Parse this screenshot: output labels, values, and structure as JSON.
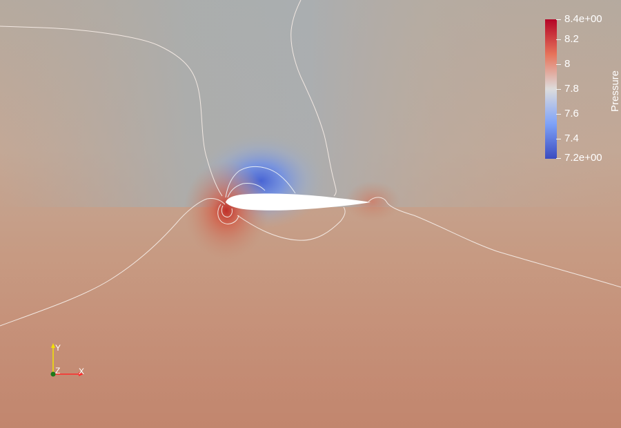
{
  "scalar_field": {
    "name": "Pressure",
    "range": [
      7.2,
      8.4
    ],
    "colormap": "cool-to-warm",
    "colors": {
      "high": "#b40426",
      "mid": "#dddcdc",
      "low": "#3b4cc0",
      "background": "#c48d74",
      "contour": "#f0e6e0",
      "airfoil": "#ffffff"
    }
  },
  "colorbar": {
    "title": "Pressure",
    "labels": [
      "8.4e+00",
      "8.2",
      "8",
      "7.8",
      "7.6",
      "7.4",
      "7.2e+00"
    ],
    "values": [
      8.4,
      8.2,
      8.0,
      7.8,
      7.6,
      7.4,
      7.2
    ]
  },
  "orientation_axes": {
    "x_label": "X",
    "y_label": "Y",
    "z_label": "Z",
    "colors": {
      "x": "#ff2a2a",
      "y": "#f2e205",
      "z": "#1a7a1a"
    }
  }
}
